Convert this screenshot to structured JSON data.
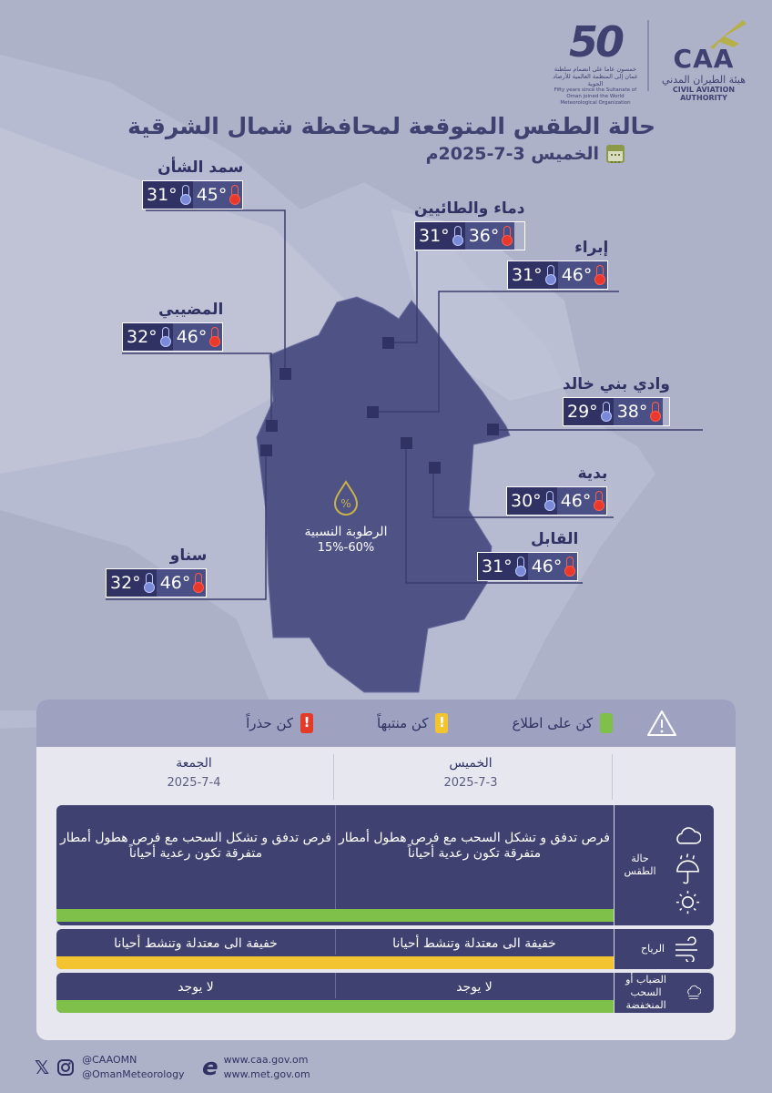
{
  "header": {
    "title": "حالة الطقس المتوقعة لمحافظة شمال الشرقية",
    "date": "الخميس 3-7-2025م",
    "logos": {
      "caa_mark": "CAA",
      "caa_arabic": "هيئة الطيران المدني",
      "caa_english": "CIVIL AVIATION AUTHORITY",
      "fifty_mark": "50",
      "fifty_arabic": "خمسون عاما على انضمام سلطنة عمان إلى المنظمة العالمية للأرصاد الجوية",
      "fifty_english": "Fifty years since the Sultanate of Oman joined the World Meteorological Organization"
    }
  },
  "cities": [
    {
      "key": "samad",
      "name": "سمد الشأن",
      "max": "45°",
      "min": "31°"
    },
    {
      "key": "dima",
      "name": "دماء والطائيين",
      "max": "36°",
      "min": "31°"
    },
    {
      "key": "ibra",
      "name": "إبراء",
      "max": "46°",
      "min": "31°"
    },
    {
      "key": "mudaibi",
      "name": "المضيبي",
      "max": "46°",
      "min": "32°"
    },
    {
      "key": "wadi",
      "name": "وادي بني خالد",
      "max": "38°",
      "min": "29°"
    },
    {
      "key": "bidiya",
      "name": "بدية",
      "max": "46°",
      "min": "30°"
    },
    {
      "key": "qabil",
      "name": "القابل",
      "max": "46°",
      "min": "31°"
    },
    {
      "key": "sinaw",
      "name": "سناو",
      "max": "46°",
      "min": "32°"
    }
  ],
  "humidity": {
    "label": "الرطوبة النسبية",
    "value": "60%-15%"
  },
  "legend": {
    "aware": "كن على اطلاع",
    "attentive": "كن منتبهاً",
    "careful": "كن حذراً"
  },
  "days": [
    {
      "name": "الخميس",
      "date": "2025-7-3"
    },
    {
      "name": "الجمعة",
      "date": "2025-7-4"
    }
  ],
  "rows": {
    "weather": {
      "label": "حالة الطقس",
      "day1": "فرص تدفق و تشكل السحب مع فرص هطول أمطار متفرقة تكون رعدية أحياناً",
      "day2": "فرص تدفق و تشكل السحب مع فرص هطول أمطار متفرقة تكون رعدية أحياناً",
      "level": "green"
    },
    "wind": {
      "label": "الرياح",
      "day1": "خفيفة الى معتدلة وتنشط أحيانا",
      "day2": "خفيفة الى معتدلة وتنشط أحيانا",
      "level": "yellow"
    },
    "fog": {
      "label": "الضباب أو السحب المنخفضة",
      "day1": "لا يوجد",
      "day2": "لا يوجد",
      "level": "green"
    }
  },
  "footer": {
    "twitter": "@CAAOMN",
    "instagram": "@OmanMeteorology",
    "site1": "www.caa.gov.om",
    "site2": "www.met.gov.om"
  },
  "colors": {
    "background": "#aeb2c9",
    "region": "#4f5285",
    "navy": "#2f3263",
    "green": "#7fc04a",
    "yellow": "#f4c430",
    "red": "#e33a2a"
  }
}
